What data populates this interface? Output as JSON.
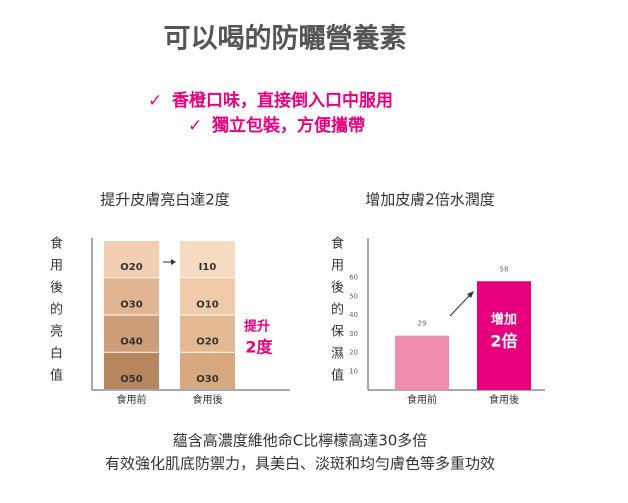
{
  "title": "可以喝的防曬營養素",
  "bullets": [
    "香橙口味，直接倒入口中服用",
    "獨立包裝，方便攜帶"
  ],
  "brightness_panel": {
    "title": "提升皮膚亮白達2度",
    "y_label": "食用後的亮白值",
    "categories": [
      "食用前",
      "食用後"
    ],
    "before_shades": [
      "O20",
      "O30",
      "O40",
      "O50"
    ],
    "after_shades": [
      "I10",
      "O10",
      "O20",
      "O30"
    ],
    "annotation": [
      "提升",
      "2度"
    ]
  },
  "chart_data": {
    "type": "bar",
    "title": "增加皮膚2倍水潤度",
    "y_label": "食用後的保濕值",
    "categories": [
      "食用前",
      "食用後"
    ],
    "values": [
      29,
      58
    ],
    "colors": [
      "#f08db0",
      "#e6007e"
    ],
    "ylim": [
      0,
      80
    ],
    "yticks": [
      10,
      20,
      30,
      40,
      50,
      60
    ],
    "annotation": [
      "增加",
      "2倍"
    ]
  },
  "footer": [
    "蘊含高濃度維他命C比檸檬高達30多倍",
    "有效強化肌底防禦力，具美白、淡斑和均勻膚色等多重功效"
  ]
}
